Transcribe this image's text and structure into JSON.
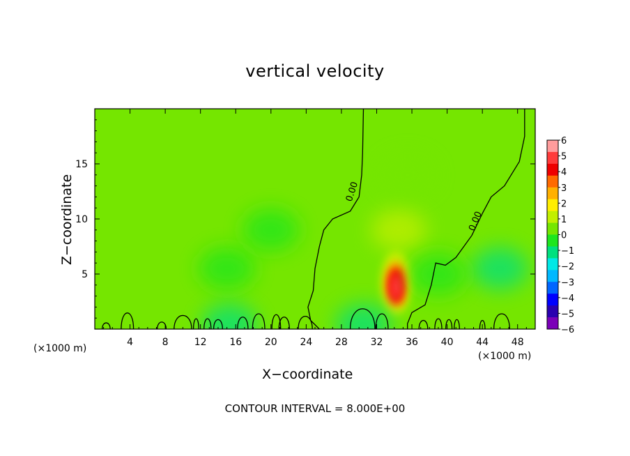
{
  "chart_data": {
    "type": "heatmap",
    "title": "vertical velocity",
    "xlabel": "X−coordinate",
    "ylabel": "Z−coordinate",
    "x_unit_label": "(×1000 m)",
    "xlim": [
      0,
      50
    ],
    "ylim": [
      0,
      20
    ],
    "x_ticks": [
      4,
      8,
      12,
      16,
      20,
      24,
      28,
      32,
      36,
      40,
      44,
      48
    ],
    "y_ticks": [
      5,
      10,
      15
    ],
    "colorbar": {
      "ticks": [
        6,
        5,
        4,
        3,
        2,
        1,
        0,
        -1,
        -2,
        -3,
        -4,
        -5,
        -6
      ],
      "colors": [
        "#ff9c9c",
        "#ff3b3b",
        "#ee0000",
        "#ff6a00",
        "#ffb000",
        "#ffee00",
        "#c2ef00",
        "#75e600",
        "#1ee61e",
        "#00e07e",
        "#00e8e6",
        "#00b8ff",
        "#0066ff",
        "#0000ff",
        "#2a00b0",
        "#7b00b8"
      ],
      "range": [
        -6,
        6
      ]
    },
    "contour_label": "0.00",
    "footer": "CONTOUR INTERVAL = 8.000E+00",
    "features": [
      {
        "x": 34.2,
        "z": 4.2,
        "w": 6.0
      },
      {
        "x": 34.5,
        "z": 9.0,
        "w": 1.5
      },
      {
        "x": 35.5,
        "z": 14.0,
        "w": 0.6
      },
      {
        "x": 46.0,
        "z": 5.5,
        "w": -0.9
      },
      {
        "x": 15.0,
        "z": 5.5,
        "w": -0.6
      },
      {
        "x": 20.0,
        "z": 9.0,
        "w": -0.5
      },
      {
        "x": 30.5,
        "z": 0.4,
        "w": -1.3
      },
      {
        "x": 15.3,
        "z": 0.4,
        "w": -0.9
      },
      {
        "x": 39.0,
        "z": 5.0,
        "w": -0.5
      }
    ]
  }
}
